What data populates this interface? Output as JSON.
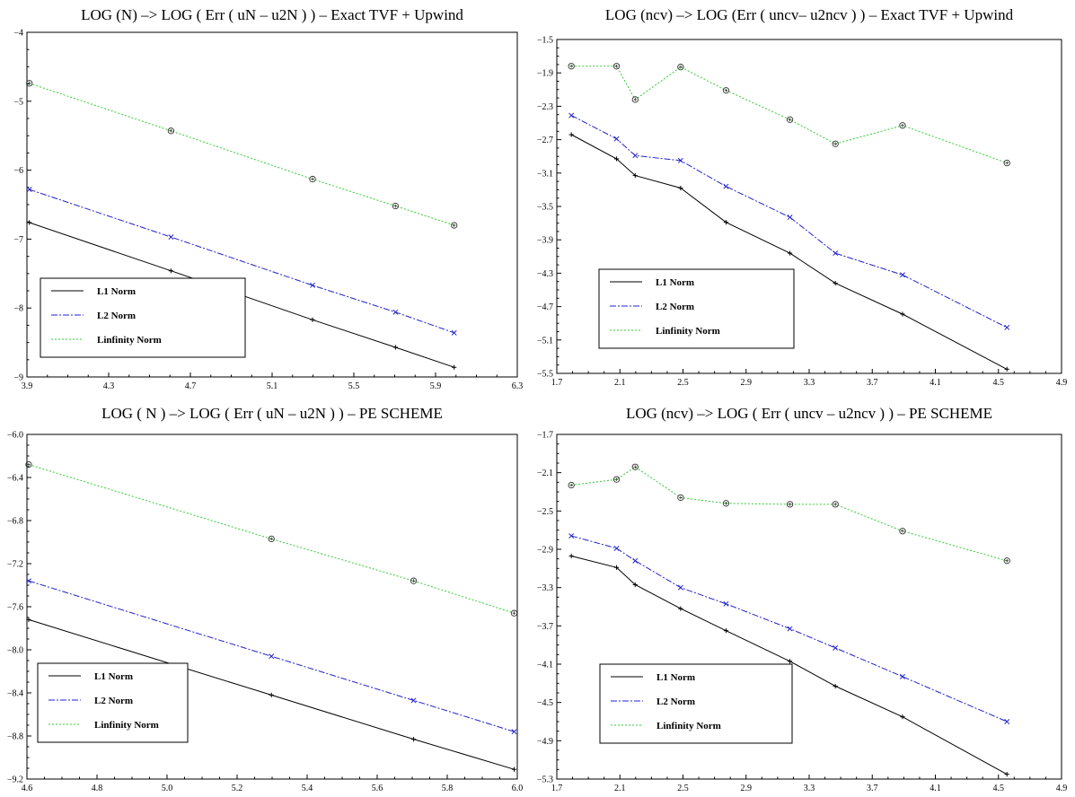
{
  "chart_data": [
    {
      "type": "line",
      "title": "LOG (N) –> LOG  ( Err ( uN – u2N ) )  –  Exact TVF + Upwind",
      "xlim": [
        3.9,
        6.3
      ],
      "ylim": [
        -9,
        -4
      ],
      "xticks": [
        "3.9",
        "4.3",
        "4.7",
        "5.1",
        "5.5",
        "5.9",
        "6.3"
      ],
      "yticks": [
        "−4",
        "−5",
        "−6",
        "−7",
        "−8",
        "−9"
      ],
      "x": [
        3.912,
        4.605,
        5.298,
        5.704,
        5.991
      ],
      "series": [
        {
          "name": "L1 Norm",
          "color": "#000000",
          "dash": "",
          "marker": "plus",
          "values": [
            -6.76,
            -7.46,
            -8.17,
            -8.57,
            -8.86
          ]
        },
        {
          "name": "L2 Norm",
          "color": "#2222cc",
          "dash": "7 2 2 2",
          "marker": "x",
          "values": [
            -6.28,
            -6.97,
            -7.67,
            -8.06,
            -8.36
          ]
        },
        {
          "name": "Linfinity  Norm",
          "color": "#33cc33",
          "dash": "2 2",
          "marker": "circle",
          "values": [
            -4.74,
            -5.43,
            -6.13,
            -6.52,
            -6.8
          ]
        }
      ],
      "legend": "bottom-left"
    },
    {
      "type": "line",
      "title": "LOG (ncv) –> LOG (Err ( uncv– u2ncv ) )  –  Exact TVF + Upwind",
      "xlim": [
        1.7,
        4.9
      ],
      "ylim": [
        -5.5,
        -1.5
      ],
      "xticks": [
        "1.7",
        "2.1",
        "2.5",
        "2.9",
        "3.3",
        "3.7",
        "4.1",
        "4.5",
        "4.9"
      ],
      "yticks": [
        "−1.5",
        "−1.9",
        "−2.3",
        "−2.7",
        "−3.1",
        "−3.5",
        "−3.9",
        "−4.3",
        "−4.7",
        "−5.1",
        "−5.5"
      ],
      "x": [
        1.792,
        2.079,
        2.197,
        2.485,
        2.773,
        3.178,
        3.466,
        3.892,
        4.554
      ],
      "series": [
        {
          "name": "L1 Norm",
          "color": "#000000",
          "dash": "",
          "marker": "plus",
          "values": [
            -2.64,
            -2.93,
            -3.13,
            -3.28,
            -3.69,
            -4.06,
            -4.42,
            -4.79,
            -5.45
          ]
        },
        {
          "name": "L2 Norm",
          "color": "#2222cc",
          "dash": "7 2 2 2",
          "marker": "x",
          "values": [
            -2.41,
            -2.69,
            -2.89,
            -2.95,
            -3.26,
            -3.63,
            -4.06,
            -4.32,
            -4.95
          ]
        },
        {
          "name": "Linfinity  Norm",
          "color": "#33cc33",
          "dash": "2 2",
          "marker": "circle",
          "values": [
            -1.82,
            -1.82,
            -2.22,
            -1.83,
            -2.11,
            -2.46,
            -2.75,
            -2.53,
            -2.98
          ]
        }
      ],
      "legend": "bottom-left"
    },
    {
      "type": "line",
      "title": "LOG ( N ) –> LOG  ( Err ( uN – u2N ) )  –  PE SCHEME",
      "xlim": [
        4.6,
        6.0
      ],
      "ylim": [
        -9.2,
        -6.0
      ],
      "xticks": [
        "4.6",
        "4.8",
        "5.0",
        "5.2",
        "5.4",
        "5.6",
        "5.8",
        "6.0"
      ],
      "yticks": [
        "−6.0",
        "−6.4",
        "−6.8",
        "−7.2",
        "−7.6",
        "−8.0",
        "−8.4",
        "−8.8",
        "−9.2"
      ],
      "x": [
        4.605,
        5.298,
        5.704,
        5.991
      ],
      "series": [
        {
          "name": "L1 Norm",
          "color": "#000000",
          "dash": "",
          "marker": "plus",
          "values": [
            -7.72,
            -8.42,
            -8.83,
            -9.11
          ]
        },
        {
          "name": "L2 Norm",
          "color": "#2222cc",
          "dash": "7 2 2 2",
          "marker": "x",
          "values": [
            -7.36,
            -8.06,
            -8.47,
            -8.76
          ]
        },
        {
          "name": "Linfinity  Norm",
          "color": "#33cc33",
          "dash": "2 2",
          "marker": "circle",
          "values": [
            -6.28,
            -6.97,
            -7.36,
            -7.66
          ]
        }
      ],
      "legend": "bottom-left"
    },
    {
      "type": "line",
      "title": "LOG (ncv) –> LOG ( Err ( uncv – u2ncv ) ) –  PE SCHEME",
      "xlim": [
        1.7,
        4.9
      ],
      "ylim": [
        -5.3,
        -1.7
      ],
      "xticks": [
        "1.7",
        "2.1",
        "2.5",
        "2.9",
        "3.3",
        "3.7",
        "4.1",
        "4.5",
        "4.9"
      ],
      "yticks": [
        "−1.7",
        "−2.1",
        "−2.5",
        "−2.9",
        "−3.3",
        "−3.7",
        "−4.1",
        "−4.5",
        "−4.9",
        "−5.3"
      ],
      "x": [
        1.792,
        2.079,
        2.197,
        2.485,
        2.773,
        3.178,
        3.466,
        3.892,
        4.554
      ],
      "series": [
        {
          "name": "L1 Norm",
          "color": "#000000",
          "dash": "",
          "marker": "plus",
          "values": [
            -2.97,
            -3.09,
            -3.27,
            -3.52,
            -3.75,
            -4.07,
            -4.33,
            -4.65,
            -5.25
          ]
        },
        {
          "name": "L2 Norm",
          "color": "#2222cc",
          "dash": "7 2 2 2",
          "marker": "x",
          "values": [
            -2.76,
            -2.89,
            -3.02,
            -3.3,
            -3.47,
            -3.73,
            -3.93,
            -4.23,
            -4.7
          ]
        },
        {
          "name": "Linfinity  Norm",
          "color": "#33cc33",
          "dash": "2 2",
          "marker": "circle",
          "values": [
            -2.23,
            -2.17,
            -2.04,
            -2.36,
            -2.42,
            -2.43,
            -2.43,
            -2.71,
            -3.02
          ]
        }
      ],
      "legend": "bottom-left"
    }
  ]
}
